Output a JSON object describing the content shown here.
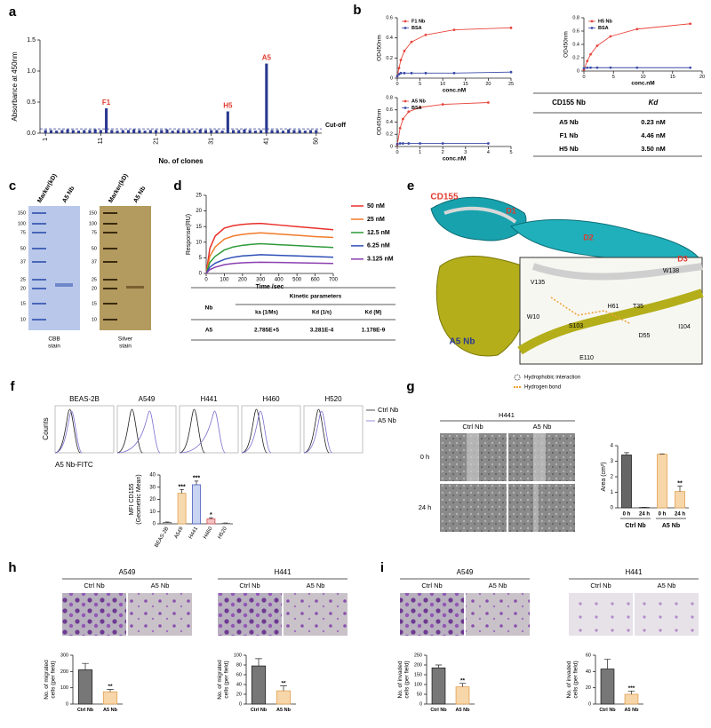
{
  "panel_labels": [
    "a",
    "b",
    "c",
    "d",
    "e",
    "f",
    "g",
    "h",
    "i"
  ],
  "chart_data": [
    {
      "type": "bar",
      "x": [
        1,
        2,
        3,
        4,
        5,
        6,
        7,
        8,
        9,
        10,
        11,
        12,
        13,
        14,
        15,
        16,
        17,
        18,
        19,
        20,
        21,
        22,
        23,
        24,
        25,
        26,
        27,
        28,
        29,
        30,
        31,
        32,
        33,
        34,
        35,
        36,
        37,
        38,
        39,
        40,
        41,
        42,
        43,
        44,
        45,
        46,
        47,
        48,
        49,
        50
      ],
      "values": [
        0.05,
        0.05,
        0.04,
        0.05,
        0.06,
        0.05,
        0.04,
        0.05,
        0.05,
        0.06,
        0.05,
        0.4,
        0.05,
        0.04,
        0.05,
        0.05,
        0.06,
        0.05,
        0.04,
        0.05,
        0.05,
        0.05,
        0.06,
        0.04,
        0.05,
        0.05,
        0.05,
        0.04,
        0.06,
        0.05,
        0.05,
        0.05,
        0.04,
        0.35,
        0.05,
        0.05,
        0.06,
        0.05,
        0.04,
        0.05,
        1.12,
        0.05,
        0.05,
        0.04,
        0.06,
        0.05,
        0.05,
        0.04,
        0.05,
        0.05
      ],
      "color": "#2b3990",
      "xlim": [
        0,
        51
      ],
      "xticks": [
        1,
        11,
        21,
        31,
        41,
        50
      ],
      "ylim": [
        0,
        1.5
      ],
      "yticks": [
        {
          "value": 0,
          "label": "0.0"
        },
        {
          "value": 0.5,
          "label": "0.5"
        },
        {
          "value": 1,
          "label": "1.0"
        },
        {
          "value": 1.5,
          "label": "1.5"
        }
      ],
      "ylabel": "Absorbance at 450nm",
      "xlabel": "No. of clones",
      "cutoff": {
        "value": 0.07,
        "label": "Cut-off"
      },
      "annotation_color": "#e03a2f",
      "annotations": [
        {
          "text": "F1",
          "x": 12
        },
        {
          "text": "H5",
          "x": 34
        },
        {
          "text": "A5",
          "x": 41
        }
      ]
    },
    {
      "type": "line",
      "x": [
        0,
        0.39,
        0.78,
        1.56,
        3.13,
        6.25,
        12.5,
        25
      ],
      "xlim": [
        0,
        25
      ],
      "xticks": [
        0,
        5,
        10,
        15,
        20,
        25
      ],
      "ylim": [
        0,
        0.6
      ],
      "yticks": [
        0,
        0.2,
        0.4,
        0.6
      ],
      "xlabel": "conc.nM",
      "ylabel": "OD450nm",
      "markers": true,
      "legend": "upper left",
      "series": [
        {
          "name": "F1 Nb",
          "color": "#e8453c",
          "values": [
            0.02,
            0.1,
            0.18,
            0.27,
            0.36,
            0.43,
            0.48,
            0.5
          ]
        },
        {
          "name": "BSA",
          "color": "#3b4ba8",
          "values": [
            0.02,
            0.04,
            0.05,
            0.05,
            0.05,
            0.05,
            0.05,
            0.06
          ]
        }
      ]
    },
    {
      "type": "line",
      "x": [
        0,
        0.56,
        1.13,
        2.25,
        4.5,
        9,
        18
      ],
      "xlim": [
        0,
        20
      ],
      "xticks": [
        0,
        5,
        10,
        15,
        20
      ],
      "ylim": [
        0,
        0.8
      ],
      "yticks": [
        0,
        0.2,
        0.4,
        0.6,
        0.8
      ],
      "xlabel": "conc.nM",
      "ylabel": "OD450nm",
      "markers": true,
      "legend": "upper left",
      "series": [
        {
          "name": "H5 Nb",
          "color": "#e8453c",
          "values": [
            0.02,
            0.15,
            0.25,
            0.38,
            0.52,
            0.63,
            0.71
          ]
        },
        {
          "name": "BSA",
          "color": "#3b4ba8",
          "values": [
            0.04,
            0.05,
            0.05,
            0.05,
            0.05,
            0.05,
            0.05
          ]
        }
      ]
    },
    {
      "type": "line",
      "x": [
        0,
        0.125,
        0.25,
        0.5,
        1,
        2,
        4
      ],
      "xlim": [
        0,
        5
      ],
      "xticks": [
        0,
        1,
        2,
        3,
        4,
        5
      ],
      "ylim": [
        0,
        0.8
      ],
      "yticks": [
        0,
        0.2,
        0.4,
        0.6,
        0.8
      ],
      "xlabel": "conc.nM",
      "ylabel": "OD450nm",
      "markers": true,
      "legend": "upper left",
      "series": [
        {
          "name": "A5 Nb",
          "color": "#e8453c",
          "values": [
            0.03,
            0.3,
            0.45,
            0.57,
            0.64,
            0.69,
            0.72
          ]
        },
        {
          "name": "BSA",
          "color": "#3b4ba8",
          "values": [
            0.04,
            0.05,
            0.05,
            0.05,
            0.05,
            0.05,
            0.05
          ]
        }
      ]
    },
    {
      "type": "line",
      "x": [
        0,
        20,
        50,
        100,
        150,
        200,
        250,
        300,
        400,
        500,
        600,
        700
      ],
      "xlim": [
        0,
        700
      ],
      "xticks": [
        0,
        100,
        200,
        300,
        400,
        500,
        600,
        700
      ],
      "ylim": [
        0,
        25
      ],
      "yticks": [
        0,
        5,
        10,
        15,
        20,
        25
      ],
      "xlabel": "Time /sec",
      "ylabel": "Response(RU)",
      "legend": "right",
      "series": [
        {
          "name": "50 nM",
          "color": "#e8302a",
          "values": [
            0,
            8,
            12,
            14.5,
            15.3,
            15.7,
            15.9,
            16,
            15.5,
            15,
            14.5,
            14
          ]
        },
        {
          "name": "25 nM",
          "color": "#f07a2a",
          "values": [
            0,
            5.5,
            8.5,
            11,
            12,
            12.5,
            12.8,
            13,
            12.6,
            12.2,
            11.8,
            11.5
          ]
        },
        {
          "name": "12.5 nM",
          "color": "#2e9a3a",
          "values": [
            0,
            3.5,
            5.5,
            7.5,
            8.5,
            9,
            9.3,
            9.5,
            9.2,
            8.9,
            8.6,
            8.3
          ]
        },
        {
          "name": "6.25 nM",
          "color": "#2f4fb8",
          "values": [
            0,
            2,
            3.3,
            4.5,
            5.2,
            5.6,
            5.8,
            6,
            5.8,
            5.6,
            5.4,
            5.2
          ]
        },
        {
          "name": "3.125 nM",
          "color": "#8a3fb0",
          "values": [
            0,
            1.2,
            2,
            2.8,
            3.2,
            3.4,
            3.5,
            3.6,
            3.5,
            3.4,
            3.3,
            3.2
          ]
        }
      ]
    },
    {
      "type": "bar",
      "categories": [
        "BEAS-2B",
        "A549",
        "H441",
        "H460",
        "H520"
      ],
      "values": [
        1,
        25,
        32,
        4,
        0.5
      ],
      "errors": [
        0.5,
        3,
        3,
        1,
        0.2
      ],
      "colors": [
        "#d9d9d9",
        "#f7d9b0",
        "#c9d4f2",
        "#f3c2c2",
        "#e8e8e8"
      ],
      "edge_colors": [
        "#555555",
        "#e0a050",
        "#4a5bbf",
        "#d05050",
        "#777777"
      ],
      "ylim": [
        0,
        40
      ],
      "yticks": [
        0,
        10,
        20,
        30,
        40
      ],
      "ylabel": [
        "MFI CD155",
        "(Geometric Mean)"
      ],
      "significance": [
        null,
        "***",
        "***",
        "*",
        null
      ]
    },
    {
      "type": "bar",
      "categories": [
        "0 h",
        "24 h",
        "0 h",
        "24 h"
      ],
      "groups": [
        "Ctrl Nb",
        "A5 Nb"
      ],
      "values": [
        3.4,
        0.02,
        3.45,
        1.05
      ],
      "errors": [
        0.15,
        0.01,
        0.02,
        0.35
      ],
      "colors": [
        "#666666",
        "#666666",
        "#f7d6aa",
        "#f7d6aa"
      ],
      "edge_colors": [
        "#222222",
        "#222222",
        "#e0a050",
        "#e0a050"
      ],
      "ylim": [
        0,
        4
      ],
      "yticks": [
        0,
        1,
        2,
        3,
        4
      ],
      "ylabel": "Area (cm²)",
      "significance": [
        null,
        null,
        null,
        "**"
      ]
    },
    {
      "type": "bar",
      "categories": [
        "Ctrl Nb",
        "A5 Nb"
      ],
      "values": [
        210,
        75
      ],
      "errors": [
        40,
        15
      ],
      "colors": [
        "#777777",
        "#f7d6aa"
      ],
      "edge_colors": [
        "#222222",
        "#e0a050"
      ],
      "ylim": [
        0,
        300
      ],
      "yticks": [
        0,
        100,
        200,
        300
      ],
      "ylabel": [
        "No. of migrated",
        "cells (per field)"
      ],
      "significance": [
        null,
        "**"
      ]
    },
    {
      "type": "bar",
      "categories": [
        "Ctrl Nb",
        "A5 Nb"
      ],
      "values": [
        78,
        27
      ],
      "errors": [
        15,
        10
      ],
      "colors": [
        "#777777",
        "#f7d6aa"
      ],
      "edge_colors": [
        "#222222",
        "#e0a050"
      ],
      "ylim": [
        0,
        100
      ],
      "yticks": [
        0,
        20,
        40,
        60,
        80,
        100
      ],
      "ylabel": [
        "No. of migrated",
        "cells (per field)"
      ],
      "significance": [
        null,
        "**"
      ]
    },
    {
      "type": "bar",
      "categories": [
        "Ctrl Nb",
        "A5 Nb"
      ],
      "values": [
        185,
        88
      ],
      "errors": [
        15,
        18
      ],
      "colors": [
        "#777777",
        "#f7d6aa"
      ],
      "edge_colors": [
        "#222222",
        "#e0a050"
      ],
      "ylim": [
        0,
        250
      ],
      "yticks": [
        0,
        50,
        100,
        150,
        200,
        250
      ],
      "ylabel": [
        "No. of invaded",
        "cells (per field)"
      ],
      "significance": [
        null,
        "**"
      ]
    },
    {
      "type": "bar",
      "categories": [
        "Ctrl Nb",
        "A5 Nb"
      ],
      "values": [
        43,
        12
      ],
      "errors": [
        12,
        4
      ],
      "colors": [
        "#777777",
        "#f7d6aa"
      ],
      "edge_colors": [
        "#222222",
        "#e0a050"
      ],
      "ylim": [
        0,
        60
      ],
      "yticks": [
        0,
        20,
        40,
        60
      ],
      "ylabel": [
        "No. of invaded",
        "cells (per field)"
      ],
      "significance": [
        null,
        "***"
      ]
    }
  ],
  "table_b": {
    "header": [
      "CD155 Nb",
      "Kd"
    ],
    "rows": [
      [
        "A5 Nb",
        "0.23 nM"
      ],
      [
        "F1 Nb",
        "4.46 nM"
      ],
      [
        "H5 Nb",
        "3.50 nM"
      ]
    ]
  },
  "table_d": {
    "group": "Kinetic parameters",
    "header": [
      "Nb",
      "ka (1/Ms)",
      "Kd (1/s)",
      "Kd (M)"
    ],
    "rows": [
      [
        "A5",
        "2.785E+5",
        "3.281E-4",
        "1.178E-9"
      ]
    ]
  },
  "gel_c": {
    "lanes": [
      "Marker(kD)",
      "A5 Nb"
    ],
    "ladder": [
      150,
      100,
      75,
      50,
      37,
      25,
      20,
      15,
      10
    ],
    "stains": [
      [
        "CBB",
        "stain"
      ],
      [
        "Silver",
        "stain"
      ]
    ]
  },
  "structure_e": {
    "domains": [
      "CD155",
      "D1",
      "D2",
      "D3",
      "A5 Nb"
    ],
    "residues": [
      "V135",
      "W138",
      "H61",
      "T35",
      "W10",
      "S103",
      "D55",
      "I104",
      "E110"
    ],
    "legend": [
      "Hydrophobic interaction",
      "Hydrogen bond"
    ]
  },
  "flow_f": {
    "cells": [
      "BEAS-2B",
      "A549",
      "H441",
      "H460",
      "H520"
    ],
    "legend": [
      "Ctrl Nb",
      "A5 Nb"
    ],
    "ylabel": "Counts",
    "xlabel": "A5 Nb-FITC"
  },
  "images_g": {
    "title": "H441",
    "columns": [
      "Ctrl Nb",
      "A5 Nb"
    ],
    "rows": [
      "0 h",
      "24 h"
    ]
  },
  "images_h": [
    {
      "title": "A549",
      "columns": [
        "Ctrl Nb",
        "A5 Nb"
      ]
    },
    {
      "title": "H441",
      "columns": [
        "Ctrl Nb",
        "A5 Nb"
      ]
    }
  ],
  "images_i": [
    {
      "title": "A549",
      "columns": [
        "Ctrl Nb",
        "A5 Nb"
      ]
    },
    {
      "title": "H441",
      "columns": [
        "Ctrl Nb",
        "A5 Nb"
      ]
    }
  ]
}
